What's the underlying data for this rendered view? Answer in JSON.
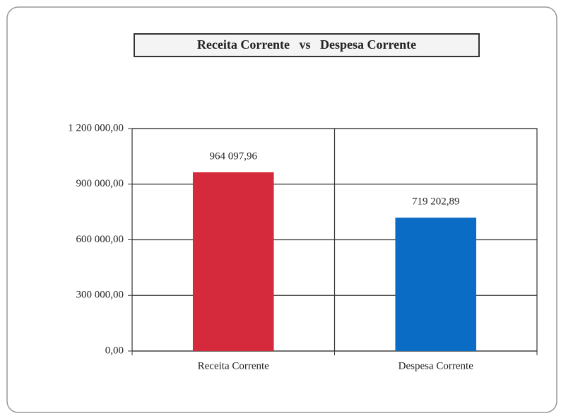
{
  "chart_data": {
    "type": "bar",
    "title": "Receita Corrente   vs   Despesa Corrente",
    "categories": [
      "Receita Corrente",
      "Despesa Corrente"
    ],
    "values": [
      964097.96,
      719202.89
    ],
    "value_labels": [
      "964 097,96",
      "719 202,89"
    ],
    "colors": [
      "#d42a3c",
      "#0a6cc4"
    ],
    "ylim": [
      0,
      1200000
    ],
    "yticks": [
      {
        "value": 0,
        "label": "0,00"
      },
      {
        "value": 300000,
        "label": "300 000,00"
      },
      {
        "value": 600000,
        "label": "600 000,00"
      },
      {
        "value": 900000,
        "label": "900 000,00"
      },
      {
        "value": 1200000,
        "label": "1 200 000,00"
      }
    ],
    "grid": true
  }
}
